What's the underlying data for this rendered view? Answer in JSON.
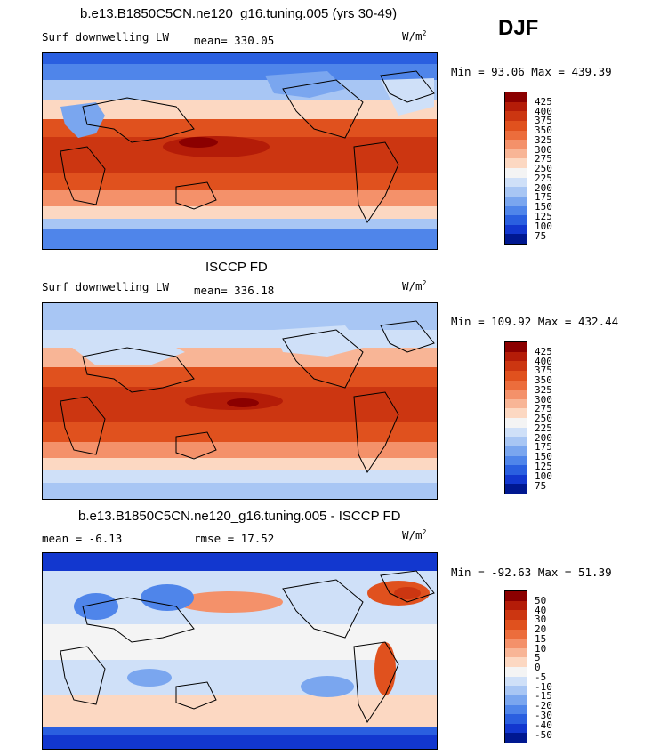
{
  "header": {
    "title": "b.e13.B1850C5CN.ne120_g16.tuning.005 (yrs 30-49)",
    "season": "DJF"
  },
  "panels": [
    {
      "title": "",
      "left_label": "Surf downwelling LW",
      "center_label": "mean= 330.05",
      "units": "W/m",
      "units_sup": "2",
      "range_text": "Min =  93.06 Max = 439.39",
      "colorbar": {
        "labels": [
          "425",
          "400",
          "375",
          "350",
          "325",
          "300",
          "275",
          "250",
          "225",
          "200",
          "175",
          "150",
          "125",
          "100",
          "75"
        ],
        "colors": [
          "#8b0000",
          "#b41c08",
          "#cc3611",
          "#e0511e",
          "#ec6d3c",
          "#f4916a",
          "#f8b596",
          "#fcd8c2",
          "#f4f4f4",
          "#cfe0f8",
          "#a8c6f4",
          "#7aa6ef",
          "#4f85ea",
          "#2a5fe0",
          "#1237cf",
          "#001890"
        ]
      }
    },
    {
      "title": "ISCCP FD",
      "left_label": "Surf downwelling LW",
      "center_label": "mean= 336.18",
      "units": "W/m",
      "units_sup": "2",
      "range_text": "Min = 109.92 Max = 432.44",
      "colorbar": {
        "labels": [
          "425",
          "400",
          "375",
          "350",
          "325",
          "300",
          "275",
          "250",
          "225",
          "200",
          "175",
          "150",
          "125",
          "100",
          "75"
        ],
        "colors": [
          "#8b0000",
          "#b41c08",
          "#cc3611",
          "#e0511e",
          "#ec6d3c",
          "#f4916a",
          "#f8b596",
          "#fcd8c2",
          "#f4f4f4",
          "#cfe0f8",
          "#a8c6f4",
          "#7aa6ef",
          "#4f85ea",
          "#2a5fe0",
          "#1237cf",
          "#001890"
        ]
      }
    },
    {
      "title": "b.e13.B1850C5CN.ne120_g16.tuning.005 - ISCCP FD",
      "left_label": "mean =   -6.13",
      "center_label": "rmse =   17.52",
      "units": "W/m",
      "units_sup": "2",
      "range_text": "Min = -92.63 Max =  51.39",
      "colorbar": {
        "labels": [
          "50",
          "40",
          "30",
          "20",
          "15",
          "10",
          "5",
          "0",
          "-5",
          "-10",
          "-15",
          "-20",
          "-30",
          "-40",
          "-50"
        ],
        "colors": [
          "#8b0000",
          "#b41c08",
          "#cc3611",
          "#e0511e",
          "#ec6d3c",
          "#f4916a",
          "#f8b596",
          "#fcd8c2",
          "#f4f4f4",
          "#cfe0f8",
          "#a8c6f4",
          "#7aa6ef",
          "#4f85ea",
          "#2a5fe0",
          "#1237cf",
          "#001890"
        ]
      }
    }
  ]
}
